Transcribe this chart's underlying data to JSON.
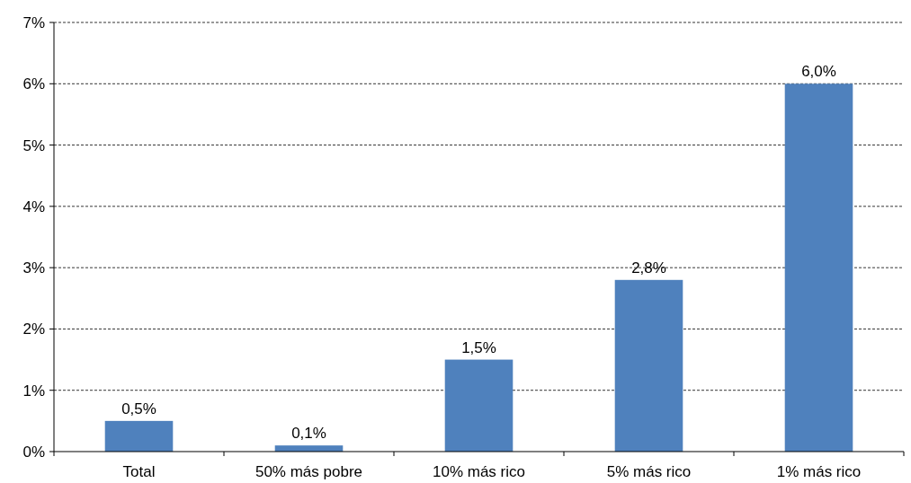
{
  "chart_data": {
    "type": "bar",
    "categories": [
      "Total",
      "50% más pobre",
      "10% más rico",
      "5% más rico",
      "1% más rico"
    ],
    "values": [
      0.5,
      0.1,
      1.5,
      2.8,
      6.0
    ],
    "value_labels": [
      "0,5%",
      "0,1%",
      "1,5%",
      "2,8%",
      "6,0%"
    ],
    "color": "#4f81bd",
    "ylim": [
      0,
      7
    ],
    "yticks": [
      {
        "value": 0,
        "label": "0%"
      },
      {
        "value": 1,
        "label": "1%"
      },
      {
        "value": 2,
        "label": "2%"
      },
      {
        "value": 3,
        "label": "3%"
      },
      {
        "value": 4,
        "label": "4%"
      },
      {
        "value": 5,
        "label": "5%"
      },
      {
        "value": 6,
        "label": "6%"
      },
      {
        "value": 7,
        "label": "7%"
      }
    ],
    "grid": "y"
  }
}
